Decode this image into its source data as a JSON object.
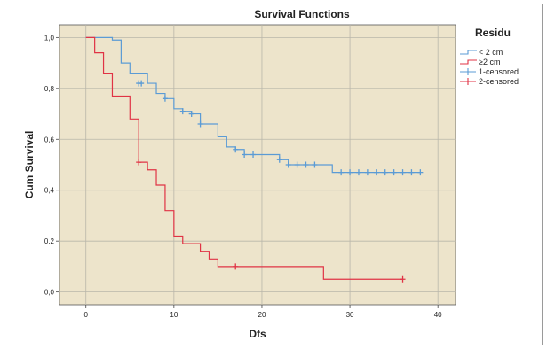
{
  "chart_data": {
    "type": "line",
    "title": "Survival Functions",
    "xlabel": "Dfs",
    "ylabel": "Cum Survival",
    "xlim": [
      -3,
      42
    ],
    "ylim": [
      -0.05,
      1.05
    ],
    "x_ticks": [
      0,
      10,
      20,
      30,
      40
    ],
    "y_ticks": [
      0.0,
      0.2,
      0.4,
      0.6,
      0.8,
      1.0
    ],
    "y_tick_labels": [
      "0,0",
      "0,2",
      "0,4",
      "0,6",
      "0,8",
      "1,0"
    ],
    "grid": true,
    "legend": {
      "title": "Residu",
      "placement": "right",
      "entries": [
        "< 2 cm",
        "≥2 cm",
        "1-censored",
        "2-censored"
      ]
    },
    "colors": {
      "plot_background": "#ede4cb",
      "series_1": "#5b9bd5",
      "series_2": "#e03345"
    },
    "series": [
      {
        "name": "< 2 cm",
        "step_x": [
          0,
          3,
          4,
          5,
          7,
          8,
          9,
          10,
          11,
          12,
          13,
          15,
          16,
          17,
          18,
          22,
          23,
          28,
          38
        ],
        "step_y": [
          1.0,
          0.99,
          0.9,
          0.86,
          0.82,
          0.78,
          0.76,
          0.72,
          0.71,
          0.7,
          0.66,
          0.61,
          0.57,
          0.56,
          0.54,
          0.52,
          0.5,
          0.47,
          0.47
        ],
        "censored_x": [
          6,
          6.3,
          9,
          11,
          12,
          13,
          17,
          18,
          19,
          22,
          23,
          24,
          25,
          26,
          29,
          30,
          31,
          32,
          33,
          34,
          35,
          36,
          37,
          38
        ],
        "censored_y": [
          0.82,
          0.82,
          0.76,
          0.71,
          0.7,
          0.66,
          0.56,
          0.54,
          0.54,
          0.52,
          0.5,
          0.5,
          0.5,
          0.5,
          0.47,
          0.47,
          0.47,
          0.47,
          0.47,
          0.47,
          0.47,
          0.47,
          0.47,
          0.47
        ]
      },
      {
        "name": "≥2 cm",
        "step_x": [
          0,
          1,
          2,
          3,
          5,
          6,
          7,
          8,
          9,
          10,
          11,
          13,
          14,
          15,
          27,
          36
        ],
        "step_y": [
          1.0,
          0.94,
          0.86,
          0.77,
          0.68,
          0.51,
          0.48,
          0.42,
          0.32,
          0.22,
          0.19,
          0.16,
          0.13,
          0.1,
          0.05,
          0.05
        ],
        "censored_x": [
          6,
          17,
          36
        ],
        "censored_y": [
          0.51,
          0.1,
          0.05
        ]
      }
    ]
  }
}
